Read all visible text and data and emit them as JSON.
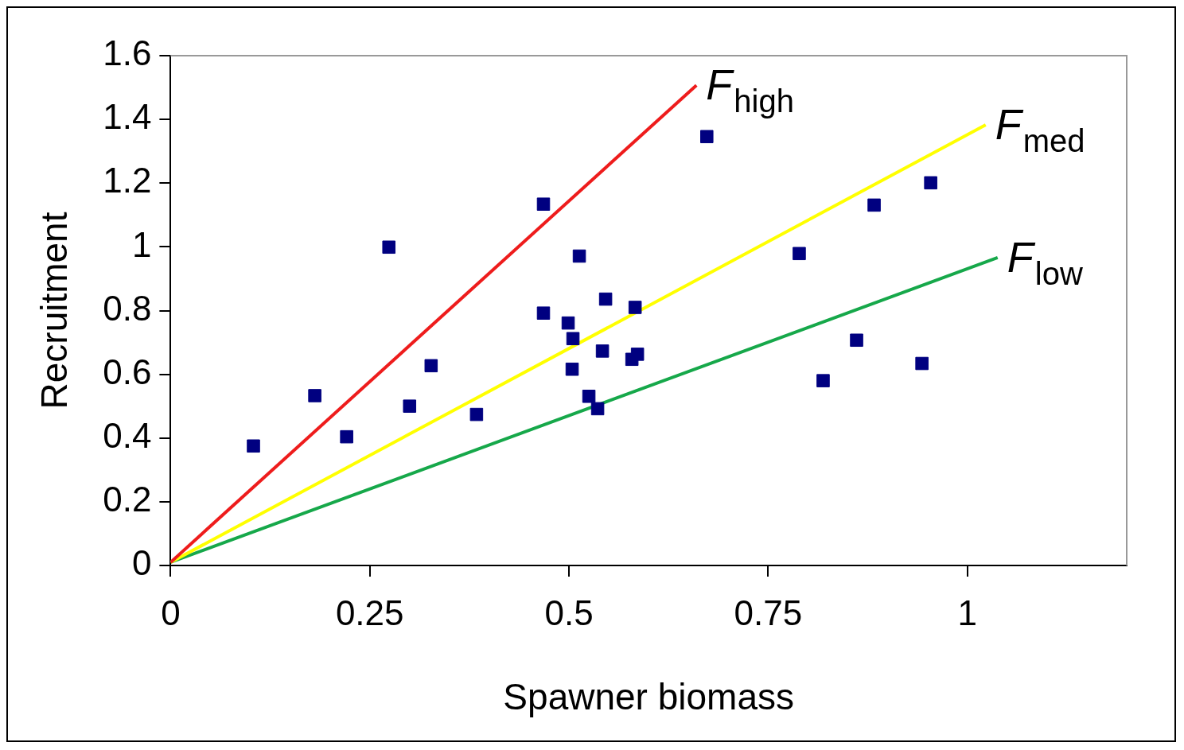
{
  "chart_data": {
    "type": "scatter",
    "xlabel": "Spawner biomass",
    "ylabel": "Recruitment",
    "xlim": [
      0,
      1.2
    ],
    "xticks": [
      0,
      0.25,
      0.5,
      0.75,
      1
    ],
    "ylim": [
      0,
      1.6
    ],
    "yticks": [
      0,
      0.2,
      0.4,
      0.6,
      0.8,
      1,
      1.2,
      1.4,
      1.6
    ],
    "grid": false,
    "legend": false,
    "series": [
      {
        "marker": "square",
        "color": "#000080",
        "x": [
          0.104,
          0.181,
          0.221,
          0.274,
          0.3,
          0.327,
          0.384,
          0.468,
          0.468,
          0.499,
          0.505,
          0.504,
          0.513,
          0.525,
          0.536,
          0.542,
          0.546,
          0.583,
          0.579,
          0.586,
          0.673,
          0.789,
          0.819,
          0.861,
          0.883,
          0.943,
          0.954
        ],
        "values": [
          0.375,
          0.533,
          0.404,
          0.999,
          0.5,
          0.627,
          0.474,
          1.134,
          0.792,
          0.761,
          0.712,
          0.616,
          0.971,
          0.531,
          0.492,
          0.673,
          0.836,
          0.81,
          0.647,
          0.663,
          1.346,
          0.979,
          0.58,
          0.707,
          1.131,
          0.634,
          1.201
        ]
      },
      {
        "type": "line",
        "name": "F$_{high}$",
        "color": "#ee1c1c",
        "x": [
          0,
          0.66
        ],
        "values": [
          0.01,
          1.507
        ]
      },
      {
        "type": "line",
        "name": "F$_{med}$",
        "color": "#ffff00",
        "x": [
          0,
          1.023
        ],
        "values": [
          0.01,
          1.383
        ]
      },
      {
        "type": "line",
        "name": "F$_{low}$",
        "color": "#16a84a",
        "x": [
          0,
          1.038
        ],
        "values": [
          0.01,
          0.966
        ]
      }
    ]
  }
}
